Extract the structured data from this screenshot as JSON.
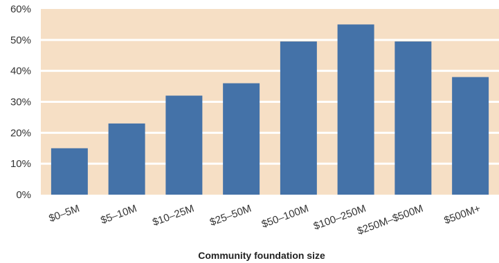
{
  "chart_data": {
    "type": "bar",
    "title": "",
    "xlabel": "Community foundation size",
    "ylabel": "",
    "categories": [
      "$0–5M",
      "$5–10M",
      "$10–25M",
      "$25–50M",
      "$50–100M",
      "$100–250M",
      "$250M–$500M",
      "$500M+"
    ],
    "values": [
      15,
      23,
      32,
      36,
      49.5,
      55,
      49.5,
      38
    ],
    "ylim": [
      0,
      60
    ],
    "yticks": [
      "0%",
      "10%",
      "20%",
      "30%",
      "40%",
      "50%",
      "60%"
    ],
    "ytick_values": [
      0,
      10,
      20,
      30,
      40,
      50,
      60
    ],
    "grid": true,
    "legend": "none",
    "colors": {
      "bar": "#4472a8",
      "plot_background": "#f6dfc5",
      "gridline": "#ffffff"
    }
  }
}
